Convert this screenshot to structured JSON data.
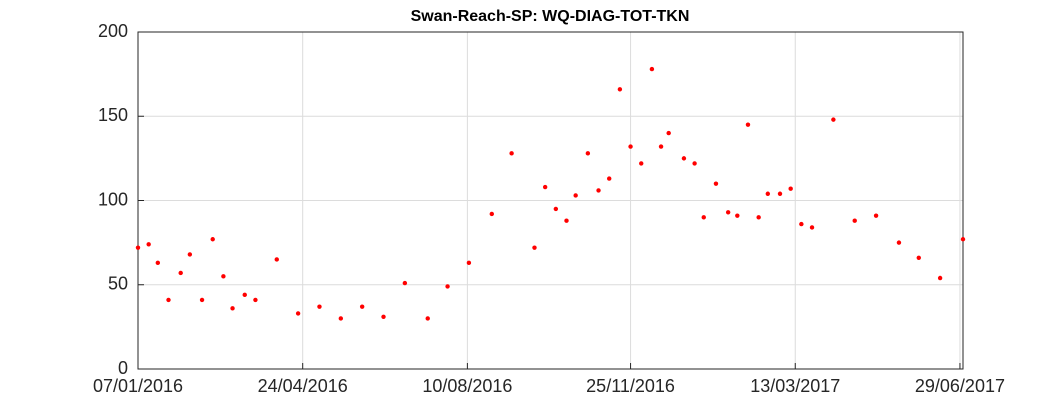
{
  "chart_data": {
    "type": "scatter",
    "title": "Swan-Reach-SP: WQ-DIAG-TOT-TKN",
    "series": [
      {
        "color": "#ff0000",
        "x": [
          "2016-01-07",
          "2016-01-14",
          "2016-01-20",
          "2016-01-27",
          "2016-02-04",
          "2016-02-10",
          "2016-02-18",
          "2016-02-25",
          "2016-03-03",
          "2016-03-09",
          "2016-03-17",
          "2016-03-24",
          "2016-04-07",
          "2016-04-21",
          "2016-05-05",
          "2016-05-19",
          "2016-06-02",
          "2016-06-16",
          "2016-06-30",
          "2016-07-15",
          "2016-07-28",
          "2016-08-11",
          "2016-08-26",
          "2016-09-08",
          "2016-09-23",
          "2016-09-30",
          "2016-10-07",
          "2016-10-14",
          "2016-10-20",
          "2016-10-28",
          "2016-11-04",
          "2016-11-11",
          "2016-11-18",
          "2016-11-25",
          "2016-12-02",
          "2016-12-09",
          "2016-12-15",
          "2016-12-20",
          "2016-12-30",
          "2017-01-06",
          "2017-01-12",
          "2017-01-20",
          "2017-01-28",
          "2017-02-03",
          "2017-02-10",
          "2017-02-17",
          "2017-02-23",
          "2017-03-03",
          "2017-03-10",
          "2017-03-17",
          "2017-03-24",
          "2017-04-07",
          "2017-04-21",
          "2017-05-05",
          "2017-05-20",
          "2017-06-02",
          "2017-06-16",
          "2017-07-01"
        ],
        "values": [
          72,
          74,
          63,
          41,
          57,
          68,
          41,
          77,
          55,
          36,
          44,
          41,
          65,
          33,
          37,
          30,
          37,
          31,
          51,
          30,
          49,
          63,
          92,
          128,
          72,
          108,
          95,
          88,
          103,
          128,
          106,
          113,
          166,
          132,
          122,
          178,
          132,
          140,
          125,
          122,
          90,
          110,
          93,
          91,
          145,
          90,
          104,
          104,
          107,
          86,
          84,
          148,
          88,
          91,
          75,
          66,
          54,
          77
        ]
      }
    ],
    "xlim": [
      "2016-01-07",
      "2017-07-01"
    ],
    "xticks": [
      {
        "value": "2016-01-07",
        "label": "07/01/2016"
      },
      {
        "value": "2016-04-24",
        "label": "24/04/2016"
      },
      {
        "value": "2016-08-10",
        "label": "10/08/2016"
      },
      {
        "value": "2016-11-25",
        "label": "25/11/2016"
      },
      {
        "value": "2017-03-13",
        "label": "13/03/2017"
      },
      {
        "value": "2017-06-29",
        "label": "29/06/2017"
      }
    ],
    "ylim": [
      0,
      200
    ],
    "yticks": [
      0,
      50,
      100,
      150,
      200
    ],
    "grid": true
  }
}
